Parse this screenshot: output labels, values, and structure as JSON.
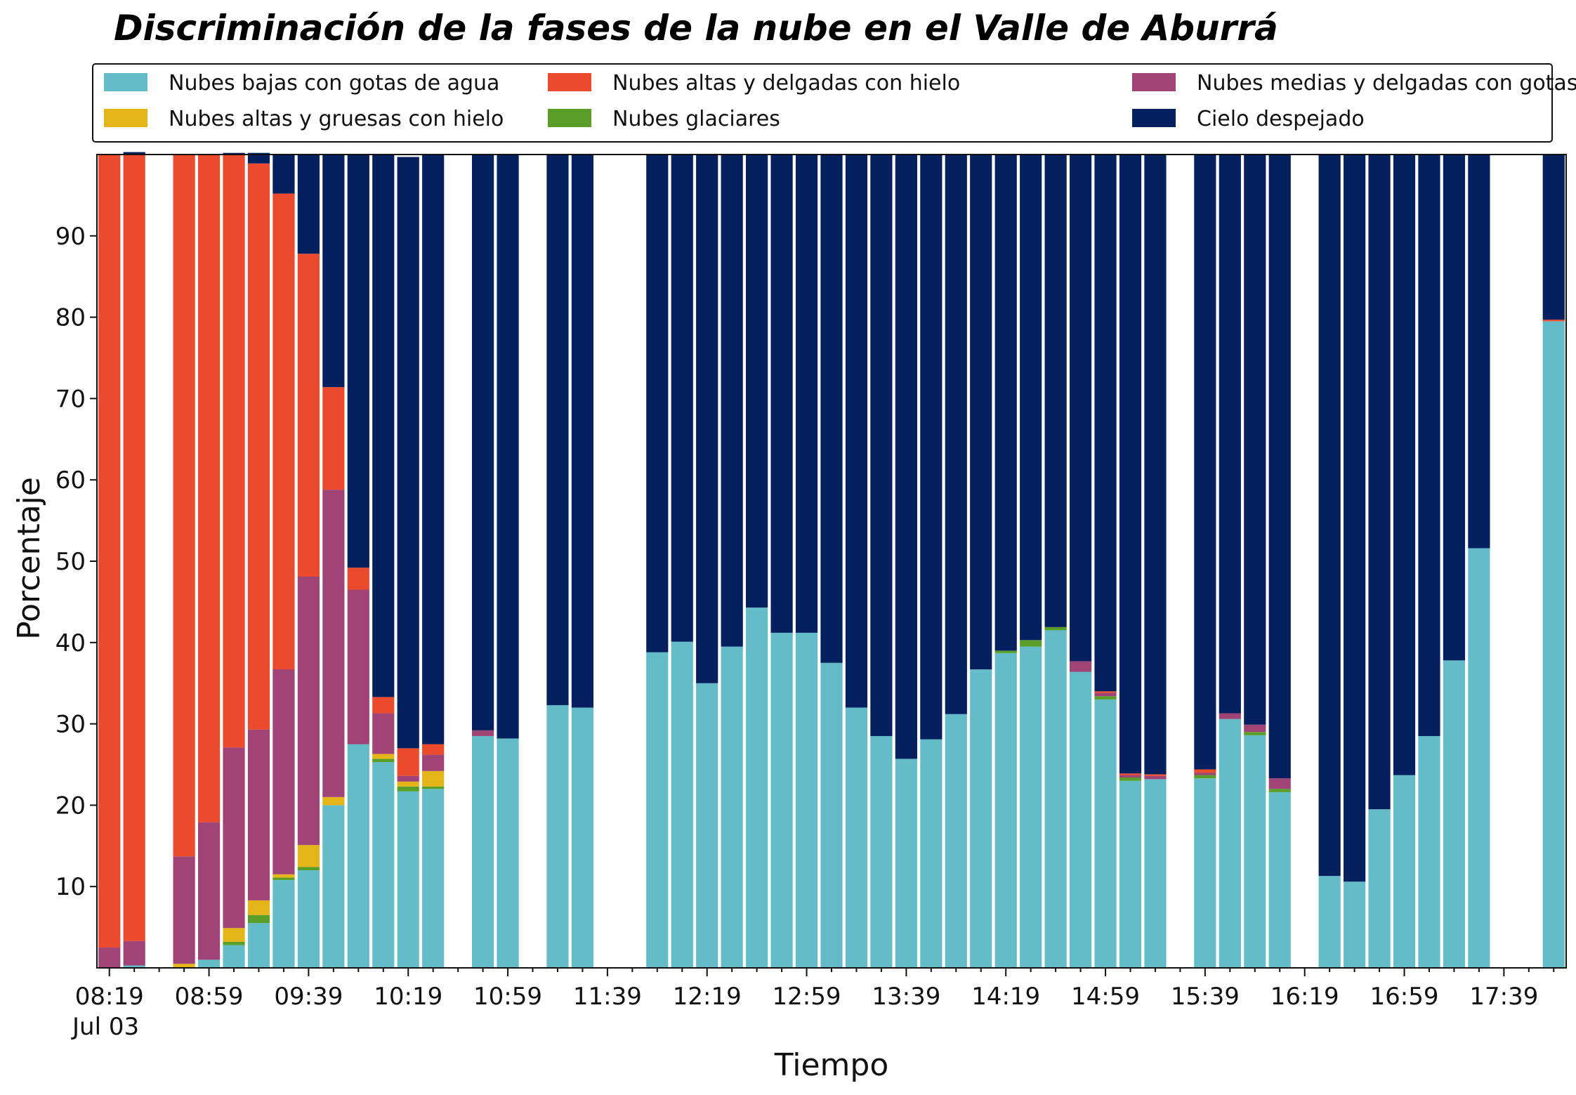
{
  "chart_data": {
    "type": "bar",
    "stacked": true,
    "title": "Discriminación de la fases de la nube en el Valle de Aburrá",
    "xlabel": "Tiempo",
    "ylabel": "Porcentaje",
    "ylim": [
      0,
      100
    ],
    "yticks": [
      10,
      20,
      30,
      40,
      50,
      60,
      70,
      80,
      90
    ],
    "xtick_labels": [
      "08:19",
      "08:59",
      "09:39",
      "10:19",
      "10:59",
      "11:39",
      "12:19",
      "12:59",
      "13:39",
      "14:19",
      "14:59",
      "15:39",
      "16:19",
      "16:59",
      "17:39"
    ],
    "xtick_date_label": "Jul 03",
    "x_start": "08:19",
    "x_step_minutes": 10,
    "legend_position": "top",
    "categories": [
      "08:19",
      "08:29",
      "08:39",
      "08:49",
      "08:59",
      "09:09",
      "09:19",
      "09:29",
      "09:39",
      "09:49",
      "09:59",
      "10:09",
      "10:19",
      "10:29",
      "10:39",
      "10:49",
      "10:59",
      "11:09",
      "11:19",
      "11:29",
      "11:39",
      "11:49",
      "11:59",
      "12:09",
      "12:19",
      "12:29",
      "12:39",
      "12:49",
      "12:59",
      "13:09",
      "13:19",
      "13:29",
      "13:39",
      "13:49",
      "13:59",
      "14:09",
      "14:19",
      "14:29",
      "14:39",
      "14:49",
      "14:59",
      "15:09",
      "15:19",
      "15:29",
      "15:39",
      "15:49",
      "15:59",
      "16:09",
      "16:19",
      "16:29",
      "16:39",
      "16:49",
      "16:59",
      "17:09",
      "17:19",
      "17:29",
      "17:39",
      "17:49",
      "17:59"
    ],
    "series": [
      {
        "name": "Nubes bajas con gotas de agua",
        "color": "#65bcc9",
        "values": [
          0,
          0.3,
          null,
          0,
          1,
          2.8,
          5.5,
          10.8,
          12,
          20,
          27.5,
          25.3,
          21.7,
          22,
          null,
          28.5,
          28.2,
          null,
          32.3,
          32,
          null,
          null,
          38.8,
          40.1,
          35,
          39.5,
          44.3,
          41.2,
          41.2,
          37.5,
          32,
          28.5,
          25.7,
          28.1,
          31.2,
          36.7,
          38.7,
          39.5,
          41.5,
          36.4,
          33,
          23,
          23.2,
          null,
          23.3,
          30.6,
          28.6,
          21.6,
          null,
          11.3,
          10.6,
          19.5,
          23.7,
          28.5,
          37.8,
          51.6,
          null,
          null,
          79.5
        ]
      },
      {
        "name": "Nubes glaciares",
        "color": "#5a9e2a",
        "values": [
          0,
          0,
          null,
          0,
          0,
          0.4,
          1,
          0.3,
          0.4,
          0,
          0,
          0.4,
          0.6,
          0.3,
          null,
          0,
          0,
          null,
          0,
          0,
          null,
          null,
          0,
          0,
          0,
          0,
          0,
          0,
          0,
          0,
          0,
          0,
          0,
          0,
          0,
          0,
          0.3,
          0.8,
          0.4,
          0,
          0.4,
          0.4,
          0,
          null,
          0.4,
          0,
          0.4,
          0.4,
          null,
          0,
          0,
          0,
          0,
          0,
          0,
          0,
          null,
          null,
          0
        ]
      },
      {
        "name": "Nubes altas y gruesas con hielo",
        "color": "#e3b518",
        "values": [
          0,
          0,
          null,
          0.5,
          0,
          1.7,
          1.8,
          0.4,
          2.7,
          1,
          0,
          0.6,
          0.6,
          1.9,
          null,
          0,
          0,
          null,
          0,
          0,
          null,
          null,
          0,
          0,
          0,
          0,
          0,
          0,
          0,
          0,
          0,
          0,
          0,
          0,
          0,
          0,
          0,
          0,
          0,
          0,
          0,
          0,
          0,
          null,
          0,
          0,
          0,
          0,
          null,
          0,
          0,
          0,
          0,
          0,
          0,
          0,
          null,
          null,
          0
        ]
      },
      {
        "name": "Nubes medias y delgadas con gotas de agua",
        "color": "#a04478",
        "values": [
          2.5,
          3,
          null,
          13.2,
          16.9,
          22.2,
          21,
          25.2,
          33,
          37.8,
          19,
          5,
          0.7,
          2,
          null,
          0.7,
          0,
          null,
          0,
          0,
          null,
          null,
          0,
          0,
          0,
          0,
          0,
          0,
          0,
          0,
          0,
          0,
          0,
          0,
          0,
          0,
          0,
          0,
          0,
          1.3,
          0.4,
          0.3,
          0.4,
          null,
          0.3,
          0.7,
          0.9,
          1.3,
          null,
          0,
          0,
          0,
          0,
          0,
          0,
          0,
          null,
          null,
          0
        ]
      },
      {
        "name": "Nubes altas y delgadas con hielo",
        "color": "#ec4a2c",
        "values": [
          97.5,
          96.7,
          null,
          86.3,
          82.1,
          72.9,
          69.6,
          58.5,
          39.7,
          12.6,
          2.7,
          2,
          3.4,
          1.3,
          null,
          0,
          0,
          null,
          0,
          0,
          null,
          null,
          0,
          0,
          0,
          0,
          0,
          0,
          0,
          0,
          0,
          0,
          0,
          0,
          0,
          0,
          0,
          0,
          0,
          0,
          0.2,
          0.2,
          0.2,
          null,
          0.4,
          0,
          0,
          0,
          null,
          0,
          0,
          0,
          0,
          0,
          0,
          0,
          null,
          null,
          0.2
        ]
      },
      {
        "name": "Cielo despejado",
        "color": "#04205e",
        "values": [
          0,
          0.3,
          null,
          0,
          0,
          0.2,
          1.3,
          4.8,
          12.2,
          28.6,
          50.8,
          66.7,
          72.7,
          72.5,
          null,
          70.8,
          71.8,
          null,
          67.7,
          68,
          null,
          null,
          61.2,
          59.9,
          65,
          60.5,
          55.7,
          58.8,
          58.8,
          62.5,
          68,
          71.5,
          74.3,
          71.9,
          68.8,
          63.3,
          61,
          59.7,
          58.1,
          62.3,
          66,
          76.1,
          76.2,
          null,
          75.6,
          68.7,
          70.1,
          76.7,
          null,
          88.7,
          89.4,
          80.5,
          76.3,
          71.5,
          62.2,
          48.4,
          null,
          null,
          20.3
        ]
      }
    ],
    "legend": [
      {
        "label": "Nubes bajas con gotas de agua",
        "color": "#65bcc9"
      },
      {
        "label": "Nubes altas y gruesas con hielo",
        "color": "#e3b518"
      },
      {
        "label": "Nubes altas y delgadas con hielo",
        "color": "#ec4a2c"
      },
      {
        "label": "Nubes glaciares",
        "color": "#5a9e2a"
      },
      {
        "label": "Nubes medias y delgadas con gotas de agua",
        "color": "#a04478"
      },
      {
        "label": "Cielo despejado",
        "color": "#04205e"
      }
    ]
  }
}
